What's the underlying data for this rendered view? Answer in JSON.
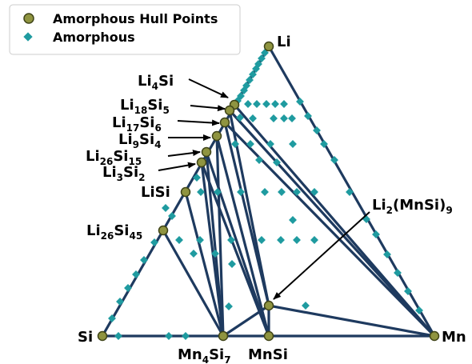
{
  "legend": {
    "hull_label": "Amorphous Hull Points",
    "amorphous_label": "Amorphous"
  },
  "corners": {
    "top": "Li",
    "left": "Si",
    "right": "Mn"
  },
  "labels": {
    "li4si": {
      "base": "Li",
      "n1": "4",
      "rest": "Si"
    },
    "li18si5": {
      "base": "Li",
      "n1": "18",
      "rest": "Si",
      "n2": "5"
    },
    "li17si6": {
      "base": "Li",
      "n1": "17",
      "rest": "Si",
      "n2": "6"
    },
    "li9si4": {
      "base": "Li",
      "n1": "9",
      "rest": "Si",
      "n2": "4"
    },
    "li26si15": {
      "base": "Li",
      "n1": "26",
      "rest": "Si",
      "n2": "15"
    },
    "li3si2": {
      "base": "Li",
      "n1": "3",
      "rest": "Si",
      "n2": "2"
    },
    "lisi": {
      "text": "LiSi"
    },
    "li26si45": {
      "base": "Li",
      "n1": "26",
      "rest": "Si",
      "n2": "45"
    },
    "li2mnsi9": {
      "base": "Li",
      "n1": "2",
      "rest": "(MnSi)",
      "n2": "9"
    },
    "mn4si7": {
      "base": "Mn",
      "n1": "4",
      "rest": "Si",
      "n2": "7"
    },
    "mnsi": {
      "text": "MnSi"
    }
  },
  "colors": {
    "hull_fill": "#8f9440",
    "hull_edge": "#3f4418",
    "amorphous": "#1f9ba0",
    "tie_line": "#1e3a5f"
  }
}
